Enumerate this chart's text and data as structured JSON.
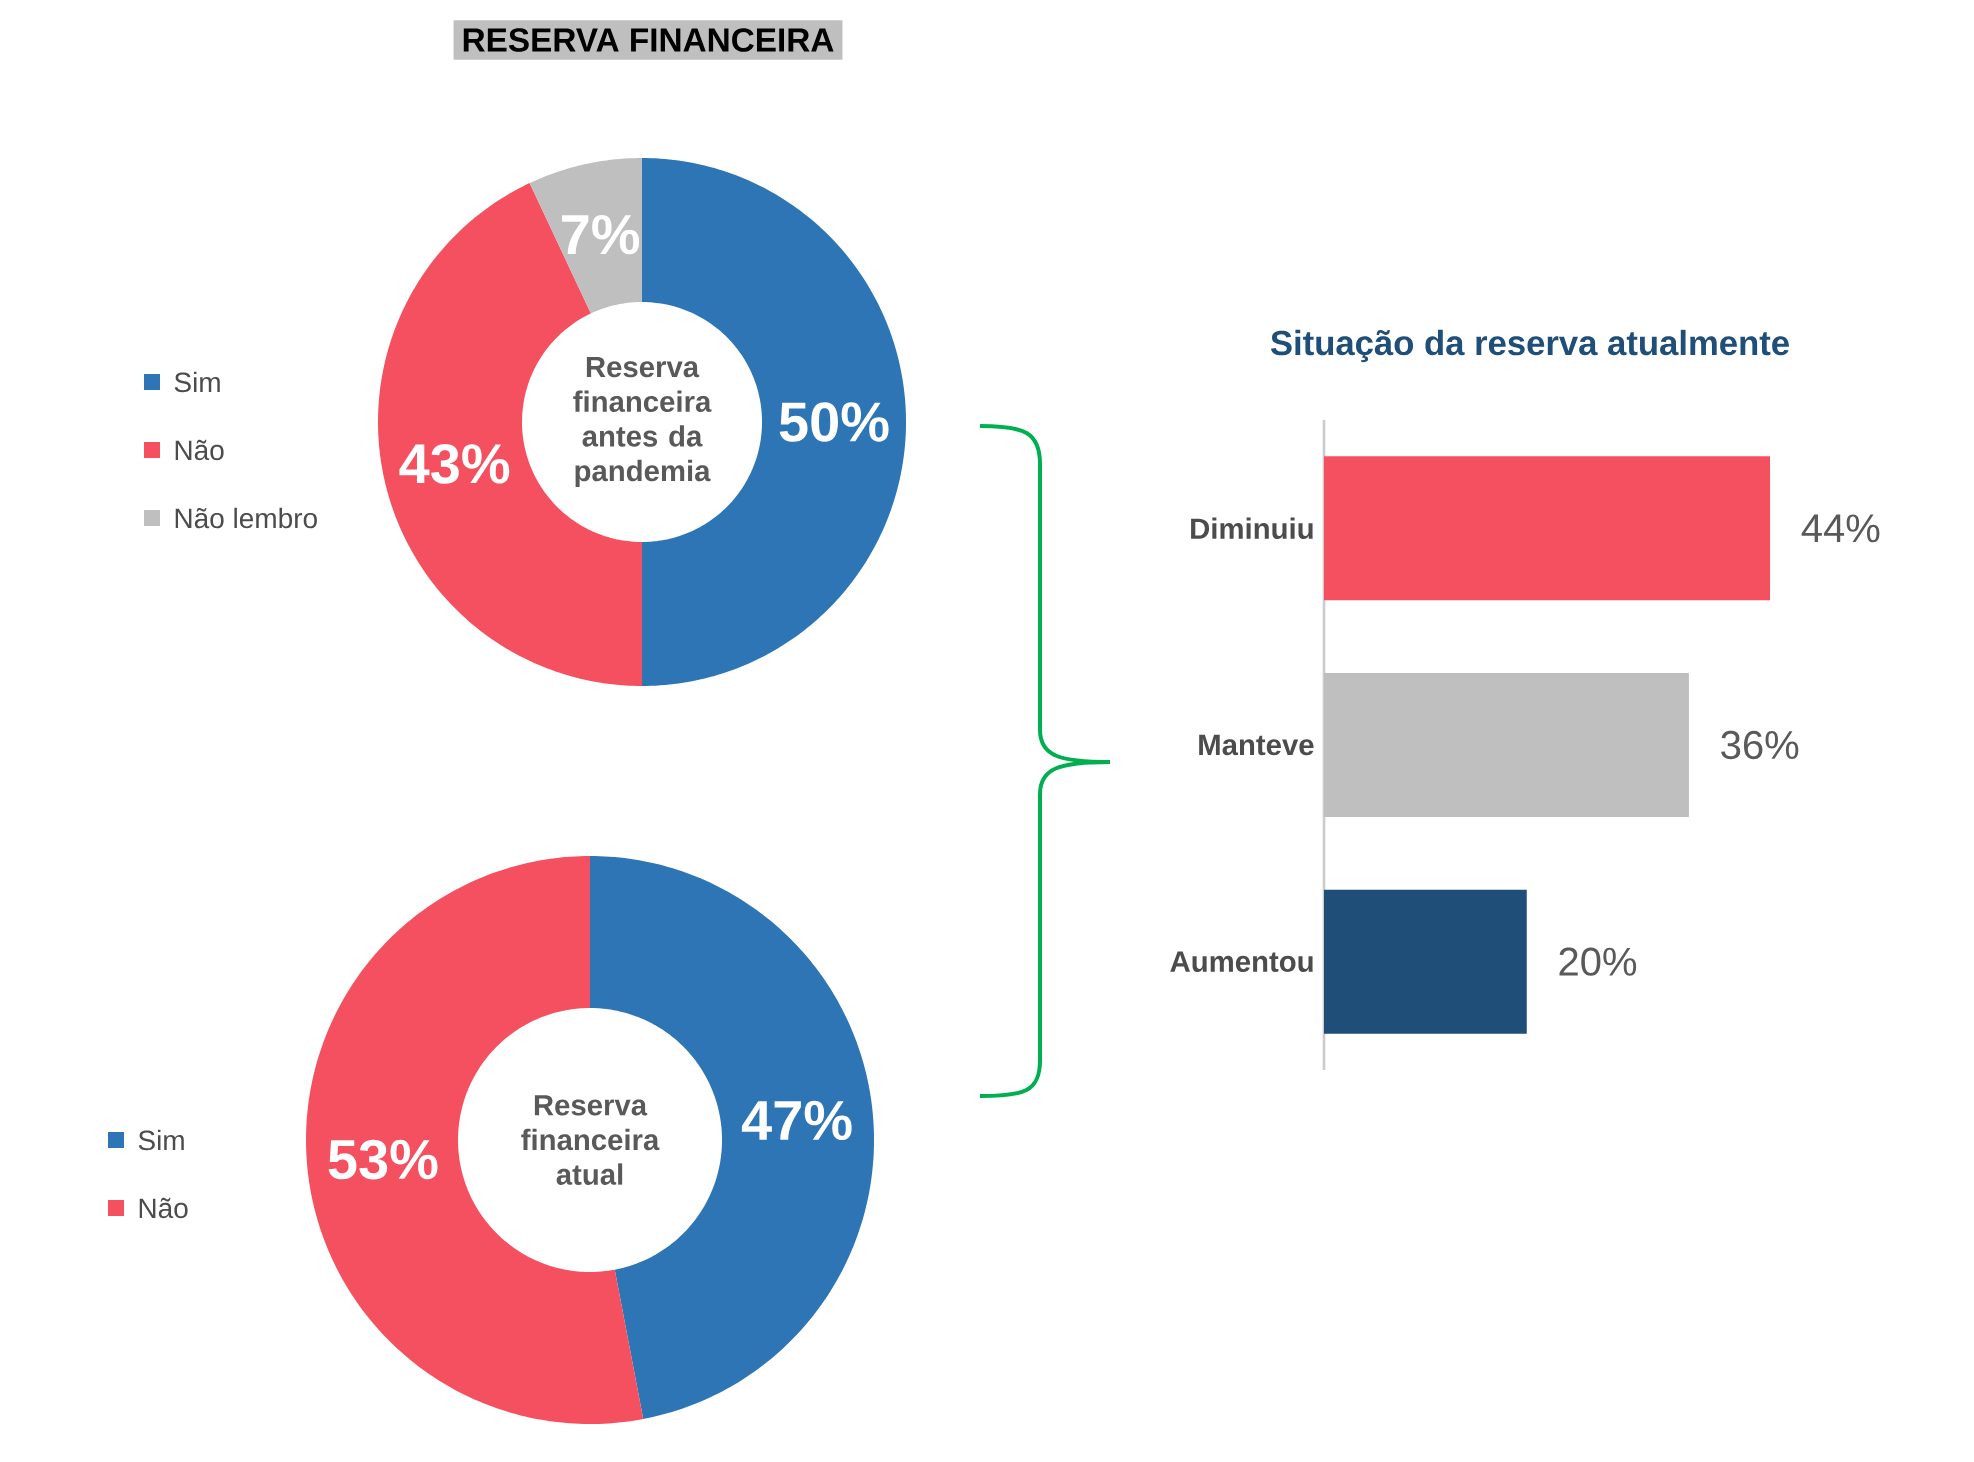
{
  "chart_data": [
    {
      "type": "donut",
      "title": "RESERVA FINANCEIRA",
      "annotations": [
        "Reserva financeira antes da pandemia"
      ],
      "categories": [
        "Sim",
        "Não",
        "Não lembro"
      ],
      "values": [
        50,
        43,
        7
      ],
      "value_labels": [
        "50%",
        "43%",
        "7%"
      ],
      "colors": [
        "#2e75b6",
        "#f4505f",
        "#bfbfbf"
      ],
      "legend": "left"
    },
    {
      "type": "donut",
      "annotations": [
        "Reserva financeira atual"
      ],
      "categories": [
        "Sim",
        "Não"
      ],
      "values": [
        47,
        53
      ],
      "value_labels": [
        "47%",
        "53%"
      ],
      "colors": [
        "#2e75b6",
        "#f4505f"
      ],
      "legend": "left"
    },
    {
      "type": "bar",
      "orientation": "horizontal",
      "title": "Situação da reserva atualmente",
      "categories": [
        "Diminuiu",
        "Manteve",
        "Aumentou"
      ],
      "values": [
        44,
        36,
        20
      ],
      "value_labels": [
        "44%",
        "36%",
        "20%"
      ],
      "colors": [
        "#f4505f",
        "#bfbfbf",
        "#1f4e79"
      ]
    }
  ]
}
